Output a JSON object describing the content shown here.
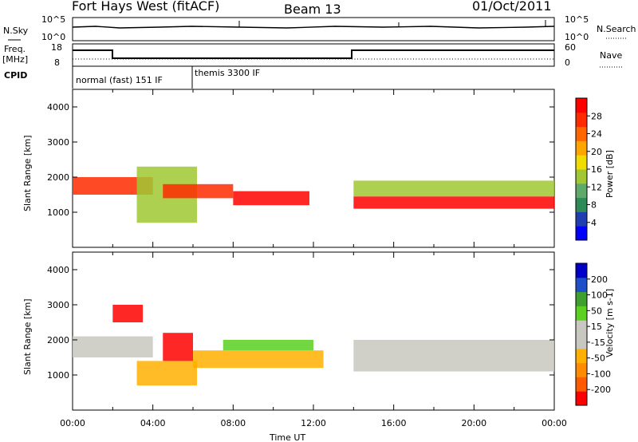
{
  "header": {
    "station": "Fort Hays West (fitACF)",
    "beam": "Beam 13",
    "date": "01/Oct/2011"
  },
  "panels": {
    "nsky_label": "N.Sky",
    "nsky_ticks": [
      "10^5",
      "10^0"
    ],
    "nsearch_label": "N.Search",
    "nsearch_ticks": [
      "10^5",
      "10^0"
    ],
    "freq_label": "Freq.",
    "freq_unit": "[MHz]",
    "freq_ticks": [
      "18",
      "8"
    ],
    "nave_label": "Nave",
    "nave_ticks": [
      "60",
      "0"
    ],
    "cpid_label": "CPID",
    "cpid_segments": [
      "normal (fast) 151 IF",
      "themis 3300 IF"
    ]
  },
  "colors": {
    "power_scale": [
      "#0000ff",
      "#1f3fb0",
      "#2e8b57",
      "#5fa96b",
      "#a0c832",
      "#f0dc00",
      "#ffa500",
      "#ff6600",
      "#ff2a00",
      "#ff0000"
    ],
    "velocity_scale": [
      "#ff0000",
      "#ff5a00",
      "#ff8c00",
      "#ffb000",
      "#c8c8c0",
      "#c8c8c0",
      "#5bd020",
      "#3fa030",
      "#2050c8",
      "#0000c8"
    ]
  },
  "chart_data": [
    {
      "type": "heatmap",
      "name": "power",
      "xlabel": "",
      "ylabel": "Slant Range [km]",
      "ytick_labels": [
        "1000",
        "2000",
        "3000",
        "4000"
      ],
      "colorbar_label": "Power [dB]",
      "colorbar_ticks": [
        "4",
        "8",
        "12",
        "16",
        "20",
        "24",
        "28"
      ],
      "zlim": [
        0,
        30
      ],
      "echo_bands": [
        {
          "t0": 0.0,
          "t1": 4.0,
          "r0": 1500,
          "r1": 2000,
          "z": 26
        },
        {
          "t0": 3.2,
          "t1": 6.2,
          "r0": 700,
          "r1": 2300,
          "z": 12
        },
        {
          "t0": 4.5,
          "t1": 8.0,
          "r0": 1400,
          "r1": 1800,
          "z": 24
        },
        {
          "t0": 8.0,
          "t1": 11.8,
          "r0": 1200,
          "r1": 1600,
          "z": 28
        },
        {
          "t0": 14.0,
          "t1": 24.0,
          "r0": 1100,
          "r1": 1450,
          "z": 28
        },
        {
          "t0": 14.0,
          "t1": 24.0,
          "r0": 1450,
          "r1": 1900,
          "z": 12
        }
      ]
    },
    {
      "type": "heatmap",
      "name": "velocity",
      "xlabel": "Time UT",
      "ylabel": "Slant Range [km]",
      "ytick_labels": [
        "1000",
        "2000",
        "3000",
        "4000"
      ],
      "xtick_labels": [
        "00:00",
        "04:00",
        "08:00",
        "12:00",
        "16:00",
        "20:00",
        "00:00"
      ],
      "colorbar_label": "Velocity [m s-1]",
      "colorbar_ticks": [
        "200",
        "100",
        "50",
        "15",
        "-15",
        "-50",
        "-100",
        "-200"
      ],
      "zlim": [
        -250,
        250
      ],
      "echo_bands": [
        {
          "t0": 0.0,
          "t1": 4.0,
          "r0": 1500,
          "r1": 2100,
          "z": 0
        },
        {
          "t0": 2.0,
          "t1": 3.5,
          "r0": 2500,
          "r1": 3000,
          "z": -220
        },
        {
          "t0": 3.2,
          "t1": 6.2,
          "r0": 700,
          "r1": 1400,
          "z": -80
        },
        {
          "t0": 4.5,
          "t1": 6.0,
          "r0": 1400,
          "r1": 2200,
          "z": -220
        },
        {
          "t0": 6.0,
          "t1": 12.5,
          "r0": 1200,
          "r1": 1700,
          "z": -70
        },
        {
          "t0": 7.5,
          "t1": 12.0,
          "r0": 1700,
          "r1": 2000,
          "z": 60
        },
        {
          "t0": 14.0,
          "t1": 24.0,
          "r0": 1100,
          "r1": 2000,
          "z": 0
        }
      ]
    }
  ]
}
